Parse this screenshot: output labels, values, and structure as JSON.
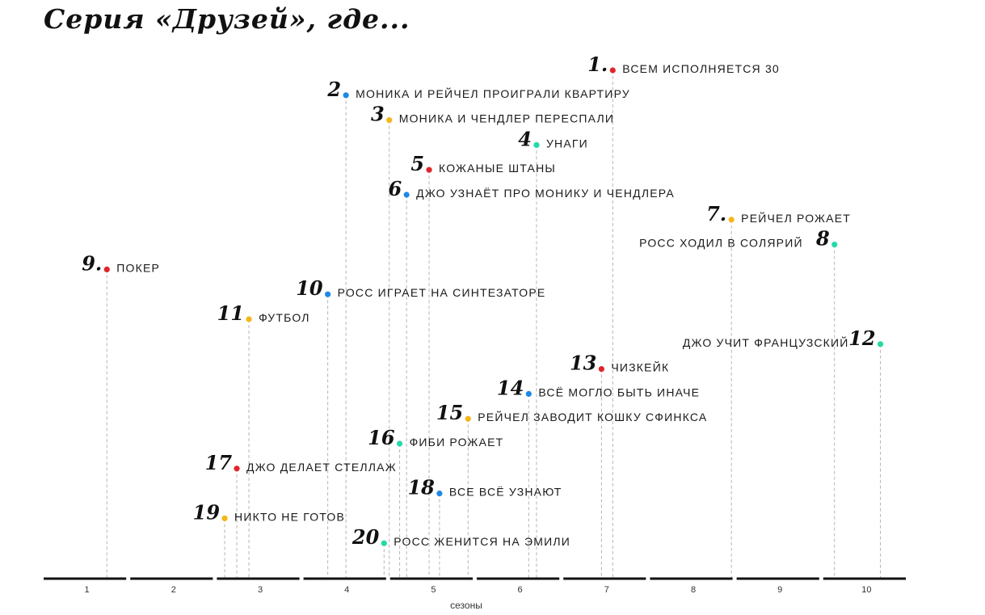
{
  "chart_data": {
    "type": "scatter",
    "title": "Серия «Друзей», где...",
    "xlabel": "сезоны",
    "ylabel": "",
    "xlim": [
      0.5,
      10.5
    ],
    "seasons": [
      1,
      2,
      3,
      4,
      5,
      6,
      7,
      8,
      9,
      10
    ],
    "colors": {
      "red": "#e0262c",
      "blue": "#1e88e5",
      "yellow": "#f6b619",
      "green": "#25d9a8",
      "axis": "#111111",
      "guide": "#b5b5b5"
    },
    "points": [
      {
        "rank": "1.",
        "label": "ВСЕМ ИСПОЛНЯЕТСЯ 30",
        "season": 7.07,
        "color": "red",
        "side": "right"
      },
      {
        "rank": "2",
        "label": "МОНИКА И РЕЙЧЕЛ ПРОИГРАЛИ КВАРТИРУ",
        "season": 3.99,
        "color": "blue",
        "side": "right"
      },
      {
        "rank": "3",
        "label": "МОНИКА И ЧЕНДЛЕР ПЕРЕСПАЛИ",
        "season": 4.49,
        "color": "yellow",
        "side": "right"
      },
      {
        "rank": "4",
        "label": "УНАГИ",
        "season": 6.19,
        "color": "green",
        "side": "right"
      },
      {
        "rank": "5",
        "label": "КОЖАНЫЕ ШТАНЫ",
        "season": 4.95,
        "color": "red",
        "side": "right"
      },
      {
        "rank": "6",
        "label": "ДЖО УЗНАЁТ ПРО МОНИКУ И ЧЕНДЛЕРА",
        "season": 4.69,
        "color": "blue",
        "side": "right"
      },
      {
        "rank": "7.",
        "label": "РЕЙЧЕЛ РОЖАЕТ",
        "season": 8.44,
        "color": "yellow",
        "side": "right"
      },
      {
        "rank": "8",
        "label": "РОСС ХОДИЛ В СОЛЯРИЙ",
        "season": 9.63,
        "color": "green",
        "side": "left"
      },
      {
        "rank": "9.",
        "label": "ПОКЕР",
        "season": 1.23,
        "color": "red",
        "side": "right"
      },
      {
        "rank": "10",
        "label": "РОСС ИГРАЕТ НА СИНТЕЗАТОРЕ",
        "season": 3.78,
        "color": "blue",
        "side": "right"
      },
      {
        "rank": "11",
        "label": "ФУТБОЛ",
        "season": 2.87,
        "color": "yellow",
        "side": "right"
      },
      {
        "rank": "12",
        "label": "ДЖО УЧИТ ФРАНЦУЗСКИЙ",
        "season": 10.16,
        "color": "green",
        "side": "left"
      },
      {
        "rank": "13",
        "label": "ЧИЗКЕЙК",
        "season": 6.94,
        "color": "red",
        "side": "right"
      },
      {
        "rank": "14",
        "label": "ВСЁ МОГЛО БЫТЬ ИНАЧЕ",
        "season": 6.1,
        "color": "blue",
        "side": "right"
      },
      {
        "rank": "15",
        "label": "РЕЙЧЕЛ ЗАВОДИТ КОШКУ СФИНКСА",
        "season": 5.4,
        "color": "yellow",
        "side": "right"
      },
      {
        "rank": "16",
        "label": "ФИБИ РОЖАЕТ",
        "season": 4.61,
        "color": "green",
        "side": "right"
      },
      {
        "rank": "17",
        "label": "ДЖО ДЕЛАЕТ СТЕЛЛАЖ",
        "season": 2.73,
        "color": "red",
        "side": "right"
      },
      {
        "rank": "18",
        "label": "ВСЕ ВСЁ УЗНАЮТ",
        "season": 5.07,
        "color": "blue",
        "side": "right"
      },
      {
        "rank": "19",
        "label": "НИКТО НЕ ГОТОВ",
        "season": 2.59,
        "color": "yellow",
        "side": "right"
      },
      {
        "rank": "20",
        "label": "РОСС ЖЕНИТСЯ НА ЭМИЛИ",
        "season": 4.43,
        "color": "green",
        "side": "right"
      }
    ]
  }
}
